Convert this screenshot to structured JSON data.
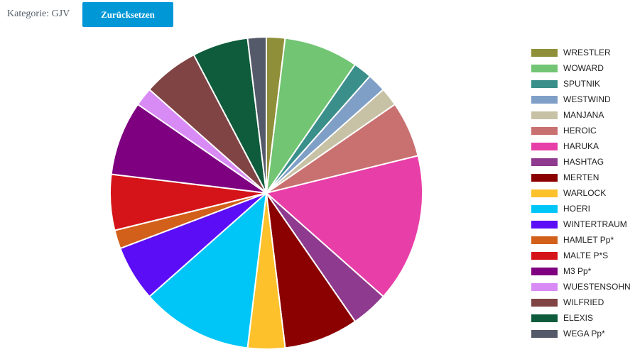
{
  "header": {
    "filter_label": "Kategorie: GJV",
    "reset_button": "Zurücksetzen"
  },
  "chart_data": {
    "type": "pie",
    "categories": [
      "WRESTLER",
      "WOWARD",
      "SPUTNIK",
      "WESTWIND",
      "MANJANA",
      "HEROIC",
      "HARUKA",
      "HASHTAG",
      "MERTEN",
      "WARLOCK",
      "HOERI",
      "WINTERTRAUM",
      "HAMLET Pp*",
      "MALTE P*S",
      "M3 Pp*",
      "WUESTENSOHN",
      "WILFRIED",
      "ELEXIS",
      "WEGA Pp*"
    ],
    "values": [
      1,
      4,
      1,
      1,
      1,
      3,
      8,
      2,
      4,
      2,
      6,
      3,
      1,
      3,
      4,
      1,
      3,
      3,
      1
    ],
    "colors": [
      "#8f8f3a",
      "#72c573",
      "#3a8f8a",
      "#7f9fc7",
      "#c7c2a5",
      "#c97070",
      "#e83ea8",
      "#8e3a8e",
      "#8b0000",
      "#fcc12b",
      "#00c5f7",
      "#5b0ef5",
      "#d2601a",
      "#d41418",
      "#7e0080",
      "#d98bf5",
      "#804444",
      "#0e5c3c",
      "#555a6a"
    ],
    "legend": "right"
  }
}
